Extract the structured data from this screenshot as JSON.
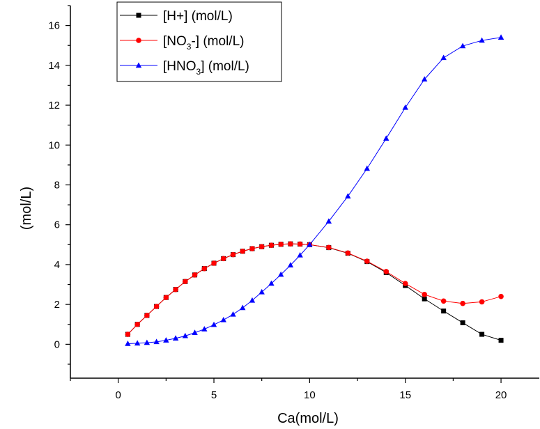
{
  "chart_data": {
    "type": "line",
    "xlabel": "Ca(mol/L)",
    "ylabel": "(mol/L)",
    "xlim": [
      -2.5,
      22
    ],
    "ylim": [
      -1.7,
      17
    ],
    "x_ticks": [
      0,
      5,
      10,
      15,
      20
    ],
    "y_ticks": [
      0,
      2,
      4,
      6,
      8,
      10,
      12,
      14,
      16
    ],
    "grid": false,
    "legend_position": "top-left",
    "series": [
      {
        "name": "[H+] (mol/L)",
        "legend_parts": [
          "[H+] (mol/L)"
        ],
        "color": "#000000",
        "marker": "square",
        "points": [
          [
            0.5,
            0.5
          ],
          [
            1,
            1.0
          ],
          [
            1.5,
            1.45
          ],
          [
            2,
            1.9
          ],
          [
            2.5,
            2.35
          ],
          [
            3,
            2.75
          ],
          [
            3.5,
            3.15
          ],
          [
            4,
            3.48
          ],
          [
            4.5,
            3.8
          ],
          [
            5,
            4.07
          ],
          [
            5.5,
            4.3
          ],
          [
            6,
            4.5
          ],
          [
            6.5,
            4.67
          ],
          [
            7,
            4.8
          ],
          [
            7.5,
            4.9
          ],
          [
            8,
            4.97
          ],
          [
            8.5,
            5.02
          ],
          [
            9,
            5.04
          ],
          [
            9.5,
            5.03
          ],
          [
            10,
            5.0
          ],
          [
            11,
            4.85
          ],
          [
            12,
            4.57
          ],
          [
            13,
            4.15
          ],
          [
            14,
            3.6
          ],
          [
            15,
            2.95
          ],
          [
            16,
            2.28
          ],
          [
            17,
            1.67
          ],
          [
            18,
            1.08
          ],
          [
            19,
            0.5
          ],
          [
            20,
            0.2
          ]
        ]
      },
      {
        "name": "[NO3-] (mol/L)",
        "legend_parts": [
          "[NO",
          "3",
          "-] (mol/L)"
        ],
        "color": "#ff0000",
        "marker": "circle",
        "points": [
          [
            0.5,
            0.5
          ],
          [
            1,
            1.0
          ],
          [
            1.5,
            1.45
          ],
          [
            2,
            1.9
          ],
          [
            2.5,
            2.35
          ],
          [
            3,
            2.75
          ],
          [
            3.5,
            3.15
          ],
          [
            4,
            3.48
          ],
          [
            4.5,
            3.8
          ],
          [
            5,
            4.07
          ],
          [
            5.5,
            4.3
          ],
          [
            6,
            4.5
          ],
          [
            6.5,
            4.67
          ],
          [
            7,
            4.8
          ],
          [
            7.5,
            4.9
          ],
          [
            8,
            4.97
          ],
          [
            8.5,
            5.02
          ],
          [
            9,
            5.04
          ],
          [
            9.5,
            5.03
          ],
          [
            10,
            5.0
          ],
          [
            11,
            4.86
          ],
          [
            12,
            4.58
          ],
          [
            13,
            4.17
          ],
          [
            14,
            3.65
          ],
          [
            15,
            3.05
          ],
          [
            16,
            2.5
          ],
          [
            17,
            2.17
          ],
          [
            18,
            2.05
          ],
          [
            19,
            2.13
          ],
          [
            20,
            2.4
          ]
        ]
      },
      {
        "name": "[HNO3] (mol/L)",
        "legend_parts": [
          "[HNO",
          "3",
          "] (mol/L)"
        ],
        "color": "#0000ff",
        "marker": "triangle",
        "points": [
          [
            0.5,
            0.03
          ],
          [
            1,
            0.05
          ],
          [
            1.5,
            0.08
          ],
          [
            2,
            0.12
          ],
          [
            2.5,
            0.2
          ],
          [
            3,
            0.3
          ],
          [
            3.5,
            0.42
          ],
          [
            4,
            0.58
          ],
          [
            4.5,
            0.76
          ],
          [
            5,
            0.98
          ],
          [
            5.5,
            1.22
          ],
          [
            6,
            1.5
          ],
          [
            6.5,
            1.83
          ],
          [
            7,
            2.2
          ],
          [
            7.5,
            2.62
          ],
          [
            8,
            3.05
          ],
          [
            8.5,
            3.5
          ],
          [
            9,
            3.97
          ],
          [
            9.5,
            4.47
          ],
          [
            10,
            5.0
          ],
          [
            11,
            6.17
          ],
          [
            12,
            7.43
          ],
          [
            13,
            8.82
          ],
          [
            14,
            10.33
          ],
          [
            15,
            11.88
          ],
          [
            16,
            13.3
          ],
          [
            17,
            14.38
          ],
          [
            18,
            14.97
          ],
          [
            19,
            15.25
          ],
          [
            20,
            15.4
          ]
        ]
      }
    ]
  }
}
